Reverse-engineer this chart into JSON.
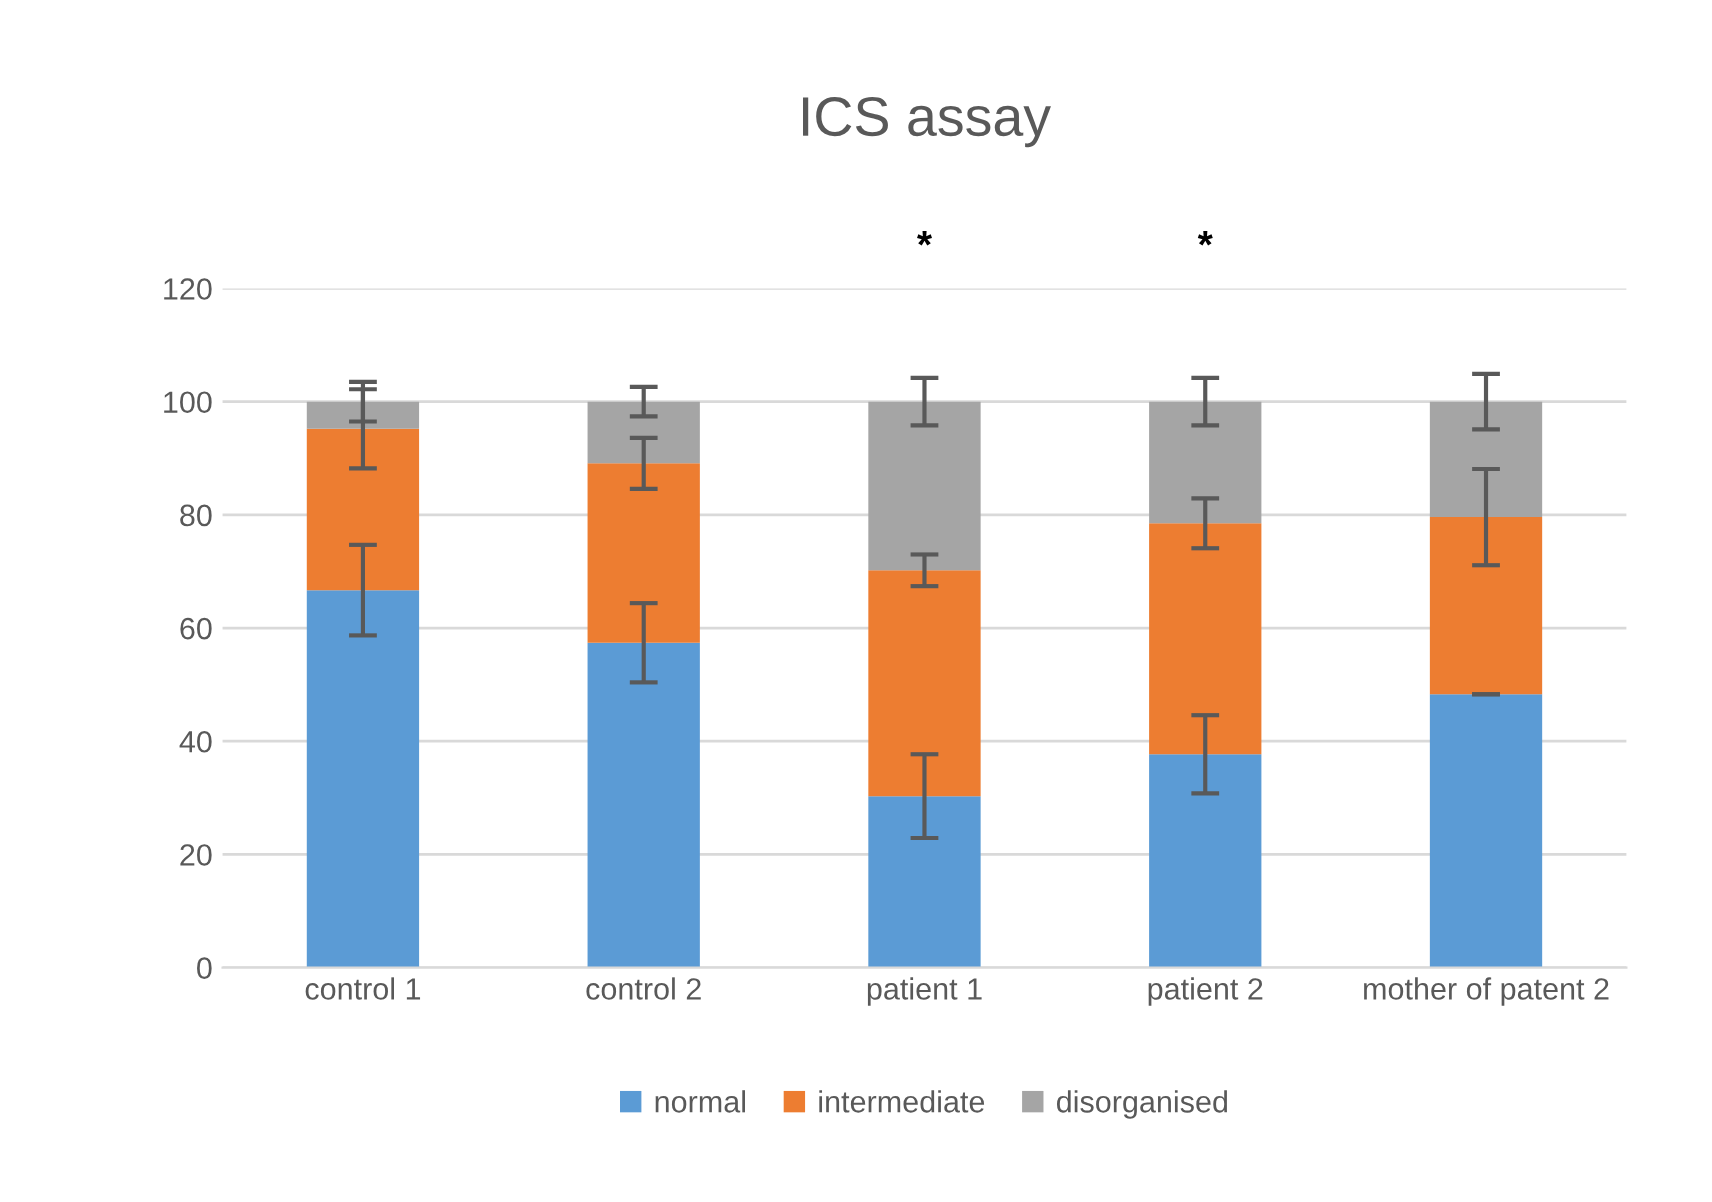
{
  "chart_data": {
    "type": "bar",
    "title": "ICS assay",
    "stacked": true,
    "categories": [
      "control 1",
      "control 2",
      "patient 1",
      "patient 2",
      "mother of patent 2"
    ],
    "series": [
      {
        "name": "normal",
        "color": "#5b9bd5",
        "values": [
          66.7,
          57.4,
          30.3,
          37.7,
          48.3
        ],
        "errors": [
          8,
          7,
          7.4,
          6.9,
          0
        ]
      },
      {
        "name": "intermediate",
        "color": "#ed7d31",
        "values": [
          28.5,
          31.7,
          39.9,
          40.8,
          31.3
        ],
        "errors": [
          7,
          4.5,
          2.8,
          4.4,
          8.5
        ]
      },
      {
        "name": "disorganised",
        "color": "#a5a5a5",
        "values": [
          4.8,
          10.9,
          29.8,
          21.5,
          20.4
        ],
        "errors": [
          3.5,
          2.6,
          4.2,
          4.2,
          4.9
        ]
      }
    ],
    "ylim": [
      0,
      120
    ],
    "yticks": [
      0,
      20,
      40,
      60,
      80,
      100,
      120
    ],
    "grid": "y",
    "legend": "bottom",
    "annotations": [
      "*",
      "*"
    ]
  }
}
